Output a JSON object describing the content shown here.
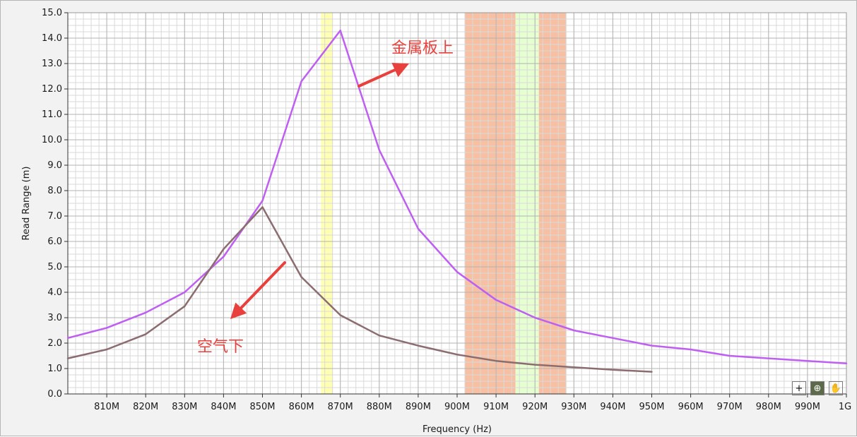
{
  "chart_data": {
    "type": "line",
    "xlabel": "Frequency (Hz)",
    "ylabel": "Read Range (m)",
    "xlim": [
      800,
      1000
    ],
    "ylim": [
      0,
      15
    ],
    "x_tick_values": [
      810,
      820,
      830,
      840,
      850,
      860,
      870,
      880,
      890,
      900,
      910,
      920,
      930,
      940,
      950,
      960,
      970,
      980,
      990,
      1000
    ],
    "x_tick_labels": [
      "810M",
      "820M",
      "830M",
      "840M",
      "850M",
      "860M",
      "870M",
      "880M",
      "890M",
      "900M",
      "910M",
      "920M",
      "930M",
      "940M",
      "950M",
      "960M",
      "970M",
      "980M",
      "990M",
      "1G"
    ],
    "y_tick_values": [
      0,
      1,
      2,
      3,
      4,
      5,
      6,
      7,
      8,
      9,
      10,
      11,
      12,
      13,
      14,
      15
    ],
    "y_tick_labels": [
      "0.0",
      "1.0",
      "2.0",
      "3.0",
      "4.0",
      "5.0",
      "6.0",
      "7.0",
      "8.0",
      "9.0",
      "10.0",
      "11.0",
      "12.0",
      "13.0",
      "14.0",
      "15.0"
    ],
    "grid": true,
    "bands": [
      {
        "x": [
          865,
          868
        ],
        "color": "#ffffb3"
      },
      {
        "x": [
          902,
          915
        ],
        "color": "#f7c0a3"
      },
      {
        "x": [
          915,
          921
        ],
        "color": "#e6ffd0"
      },
      {
        "x": [
          921,
          928
        ],
        "color": "#f7c0a3"
      }
    ],
    "series": [
      {
        "color": "#bf5ff2",
        "x": [
          800,
          810,
          820,
          830,
          840,
          850,
          860,
          870,
          880,
          890,
          900,
          910,
          920,
          930,
          940,
          950,
          960,
          970,
          980,
          990,
          1000
        ],
        "values": [
          2.2,
          2.6,
          3.2,
          4.0,
          5.4,
          7.6,
          12.3,
          14.3,
          9.6,
          6.5,
          4.8,
          3.7,
          3.0,
          2.5,
          2.2,
          1.9,
          1.75,
          1.5,
          1.4,
          1.3,
          1.2
        ]
      },
      {
        "color": "#8b6d70",
        "x": [
          800,
          810,
          820,
          830,
          840,
          850,
          860,
          870,
          880,
          890,
          900,
          910,
          920,
          930,
          940,
          950
        ],
        "values": [
          1.4,
          1.75,
          2.35,
          3.45,
          5.7,
          7.35,
          4.6,
          3.1,
          2.3,
          1.9,
          1.55,
          1.3,
          1.15,
          1.05,
          0.95,
          0.87
        ]
      }
    ],
    "annotations": [
      {
        "text": "金属板上",
        "target_series": 0
      },
      {
        "text": "空气下",
        "target_series": 1
      }
    ]
  },
  "toolbar": {
    "cursor_tool": "crosshair-icon",
    "zoom_tool": "zoom-icon",
    "pan_tool": "hand-pan-icon"
  }
}
